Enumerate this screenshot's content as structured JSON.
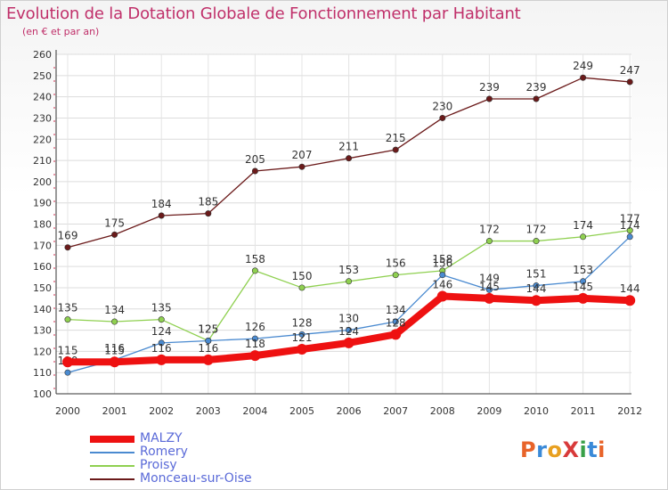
{
  "page": {
    "title": "Evolution de la Dotation Globale de Fonctionnement par Habitant",
    "subtitle": "(en € et par an)",
    "logo_text": "ProXiti",
    "logo_colors": [
      "#e8642a",
      "#3a8ad8",
      "#e8a020",
      "#d83a3a",
      "#38a048",
      "#3a8ad8",
      "#e8642a"
    ]
  },
  "chart_data": {
    "type": "line",
    "title": "Evolution de la Dotation Globale de Fonctionnement par Habitant",
    "subtitle": "(en € et par an)",
    "xlabel": "",
    "ylabel": "",
    "x": [
      "2000",
      "2001",
      "2002",
      "2003",
      "2004",
      "2005",
      "2006",
      "2007",
      "2008",
      "2009",
      "2010",
      "2011",
      "2012"
    ],
    "ylim": [
      100,
      260
    ],
    "yticks": [
      100,
      110,
      120,
      130,
      140,
      150,
      160,
      170,
      180,
      190,
      200,
      210,
      220,
      230,
      240,
      250,
      260
    ],
    "grid": true,
    "legend_position": "bottom-left",
    "series": [
      {
        "name": "Monceau-sur-Oise",
        "color": "#6b1a1a",
        "values": [
          169,
          175,
          184,
          185,
          205,
          207,
          211,
          215,
          230,
          239,
          239,
          249,
          247
        ],
        "labels": [
          "169",
          "175",
          "184",
          "185",
          "205",
          "207",
          "211",
          "215",
          "230",
          "239",
          "239",
          "249",
          "247"
        ],
        "thick": false
      },
      {
        "name": "Proisy",
        "color": "#8fd050",
        "values": [
          135,
          134,
          135,
          125,
          158,
          150,
          153,
          156,
          158,
          172,
          172,
          174,
          177
        ],
        "labels": [
          "135",
          "134",
          "135",
          "125",
          "158",
          "150",
          "153",
          "156",
          "158",
          "172",
          "172",
          "174",
          "177"
        ],
        "thick": false
      },
      {
        "name": "Romery",
        "color": "#4a8ad0",
        "values": [
          110,
          116,
          124,
          125,
          126,
          128,
          130,
          134,
          156,
          149,
          151,
          153,
          174
        ],
        "labels": [
          "110",
          "116",
          "124",
          "125",
          "126",
          "128",
          "130",
          "134",
          "156",
          "149",
          "151",
          "153",
          "174"
        ],
        "thick": false
      },
      {
        "name": "MALZY",
        "color": "#ee1111",
        "values": [
          115,
          115,
          116,
          116,
          118,
          121,
          124,
          128,
          146,
          145,
          144,
          145,
          144
        ],
        "labels": [
          "115",
          "115",
          "116",
          "116",
          "118",
          "121",
          "124",
          "128",
          "146",
          "145",
          "144",
          "145",
          "144"
        ],
        "thick": true
      }
    ]
  },
  "legend": [
    {
      "name": "MALZY",
      "color": "#ee1111",
      "thick": true
    },
    {
      "name": "Romery",
      "color": "#4a8ad0",
      "thick": false
    },
    {
      "name": "Proisy",
      "color": "#8fd050",
      "thick": false
    },
    {
      "name": "Monceau-sur-Oise",
      "color": "#6b1a1a",
      "thick": false
    }
  ]
}
